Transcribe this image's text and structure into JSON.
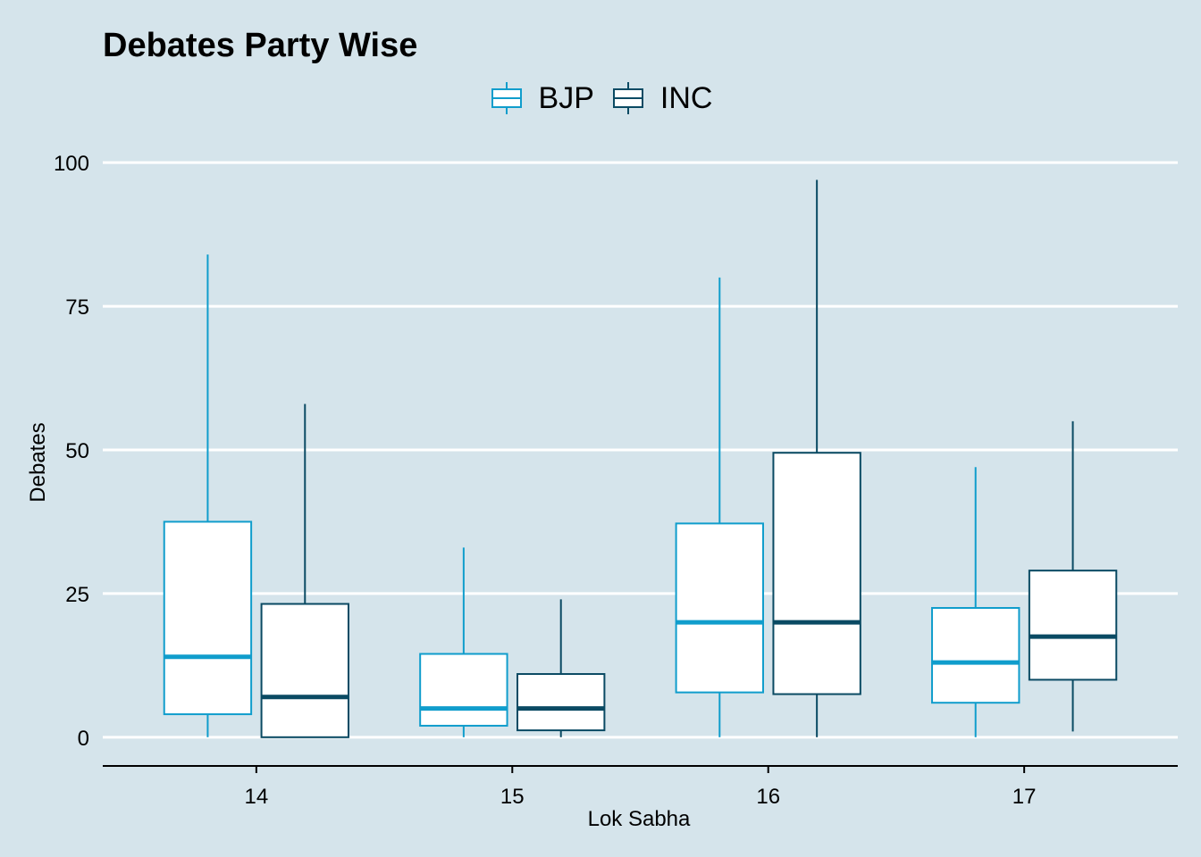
{
  "chart_data": {
    "type": "boxplot",
    "title": "Debates Party Wise",
    "xlabel": "Lok Sabha",
    "ylabel": "Debates",
    "ylim": [
      -5,
      105
    ],
    "yticks": [
      0,
      25,
      50,
      75,
      100
    ],
    "categories": [
      "14",
      "15",
      "16",
      "17"
    ],
    "legend_position": "top",
    "series": [
      {
        "name": "BJP",
        "color": "#109dcc",
        "boxes": [
          {
            "category": "14",
            "min": 0,
            "q1": 4,
            "median": 14,
            "q3": 37.5,
            "max": 84
          },
          {
            "category": "15",
            "min": 0,
            "q1": 2,
            "median": 5,
            "q3": 14.5,
            "max": 33
          },
          {
            "category": "16",
            "min": 0,
            "q1": 7.8,
            "median": 20,
            "q3": 37.2,
            "max": 80
          },
          {
            "category": "17",
            "min": 0,
            "q1": 6,
            "median": 13,
            "q3": 22.5,
            "max": 47
          }
        ]
      },
      {
        "name": "INC",
        "color": "#0a4a63",
        "boxes": [
          {
            "category": "14",
            "min": 0,
            "q1": 0,
            "median": 7,
            "q3": 23.2,
            "max": 58
          },
          {
            "category": "15",
            "min": 0,
            "q1": 1.2,
            "median": 5,
            "q3": 11,
            "max": 24
          },
          {
            "category": "16",
            "min": 0,
            "q1": 7.5,
            "median": 20,
            "q3": 49.5,
            "max": 97
          },
          {
            "category": "17",
            "min": 1,
            "q1": 10,
            "median": 17.5,
            "q3": 29,
            "max": 55
          }
        ]
      }
    ]
  }
}
